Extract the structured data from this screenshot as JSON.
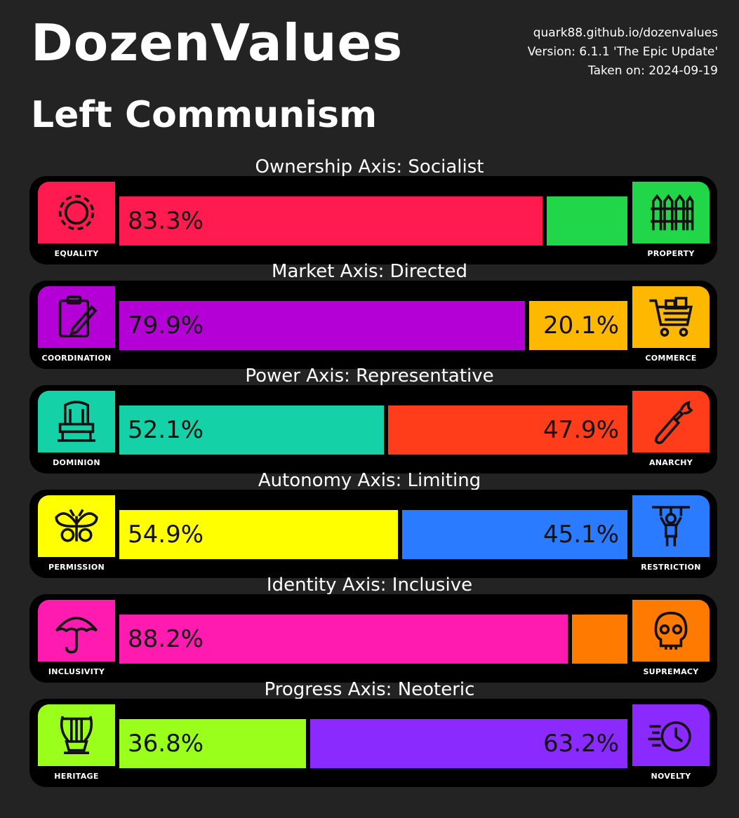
{
  "header": {
    "title": "DozenValues",
    "subtitle": "Left Communism",
    "url": "quark88.github.io/dozenvalues",
    "version": "Version: 6.1.1 'The Epic Update'",
    "taken": "Taken on: 2024-09-19"
  },
  "axes": [
    {
      "title": "Ownership Axis: Socialist",
      "left_label": "EQUALITY",
      "right_label": "PROPERTY",
      "left_value": 83.3,
      "right_value": 16.7,
      "left_text": "83.3%",
      "right_text": "",
      "left_color": "#ff1a4f",
      "right_color": "#22d64a",
      "left_icon": "gear-icon",
      "right_icon": "fence-icon"
    },
    {
      "title": "Market Axis: Directed",
      "left_label": "COORDINATION",
      "right_label": "COMMERCE",
      "left_value": 79.9,
      "right_value": 20.1,
      "left_text": "79.9%",
      "right_text": "20.1%",
      "left_color": "#b400d6",
      "right_color": "#ffb800",
      "left_icon": "clipboard-icon",
      "right_icon": "shopping-cart-icon"
    },
    {
      "title": "Power Axis: Representative",
      "left_label": "DOMINION",
      "right_label": "ANARCHY",
      "left_value": 52.1,
      "right_value": 47.9,
      "left_text": "52.1%",
      "right_text": "47.9%",
      "left_color": "#14d1a8",
      "right_color": "#ff3d1a",
      "left_icon": "throne-icon",
      "right_icon": "molotov-icon"
    },
    {
      "title": "Autonomy Axis: Limiting",
      "left_label": "PERMISSION",
      "right_label": "RESTRICTION",
      "left_value": 54.9,
      "right_value": 45.1,
      "left_text": "54.9%",
      "right_text": "45.1%",
      "left_color": "#ffff00",
      "right_color": "#2a7bff",
      "left_icon": "butterfly-icon",
      "right_icon": "puppet-icon"
    },
    {
      "title": "Identity Axis: Inclusive",
      "left_label": "INCLUSIVITY",
      "right_label": "SUPREMACY",
      "left_value": 88.2,
      "right_value": 11.8,
      "left_text": "88.2%",
      "right_text": "",
      "left_color": "#ff1ab0",
      "right_color": "#ff7a00",
      "left_icon": "umbrella-icon",
      "right_icon": "skull-icon"
    },
    {
      "title": "Progress Axis: Neoteric",
      "left_label": "HERITAGE",
      "right_label": "NOVELTY",
      "left_value": 36.8,
      "right_value": 63.2,
      "left_text": "36.8%",
      "right_text": "63.2%",
      "left_color": "#9aff1a",
      "right_color": "#8a2aff",
      "left_icon": "lyre-icon",
      "right_icon": "clock-icon"
    }
  ],
  "chart_data": {
    "type": "bar",
    "title": "",
    "categories": [
      "Ownership Axis: Socialist",
      "Market Axis: Directed",
      "Power Axis: Representative",
      "Autonomy Axis: Limiting",
      "Identity Axis: Inclusive",
      "Progress Axis: Neoteric"
    ],
    "series": [
      {
        "name": "",
        "values": [
          83.3,
          79.9,
          52.1,
          54.9,
          88.2,
          36.8
        ]
      },
      {
        "name": "",
        "values": [
          16.7,
          20.1,
          47.9,
          45.1,
          11.8,
          63.2
        ]
      }
    ],
    "ylim": [
      0,
      100
    ]
  }
}
